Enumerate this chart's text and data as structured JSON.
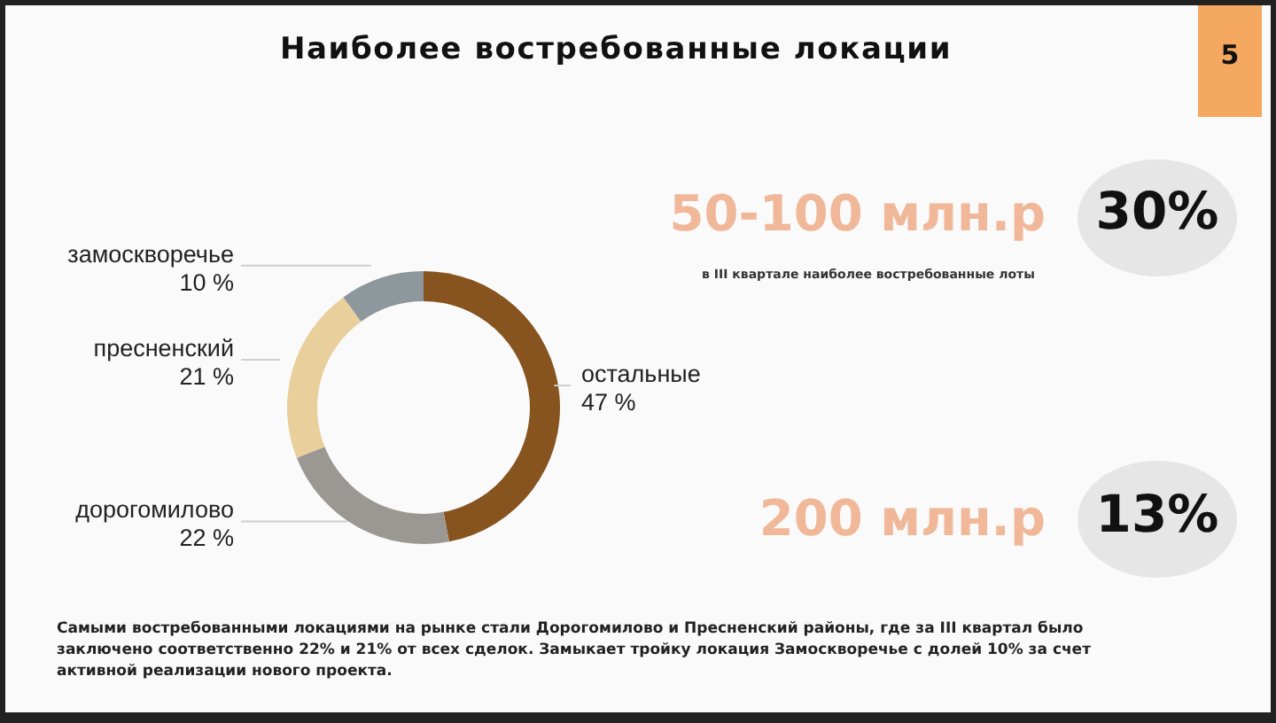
{
  "chart_data": {
    "type": "donut",
    "title": "Наиболее востребованные локации",
    "categories": [
      "остальные",
      "дорогомилово",
      "пресненский",
      "замоскворечье"
    ],
    "values": [
      47,
      22,
      21,
      10
    ],
    "value_labels": [
      "47 %",
      "22 %",
      "21 %",
      "10 %"
    ],
    "colors": [
      "#87531f",
      "#9b9893",
      "#e9cf9b",
      "#8d979c"
    ],
    "legend": false,
    "annotations": [
      "5",
      "50-100 млн.р",
      "30%",
      "в III квартале наиболее востребованные лоты",
      "200 млн.р",
      "13%",
      "Самыми востребованными локациями на рынке стали Дорогомилово и Пресненский районы, где  за III квартал было заключено соответственно 22% и 21% от всех сделок. Замыкает тройку локация  Замоскворечье с долей 10% за счет активной реализации нового проекта."
    ]
  }
}
